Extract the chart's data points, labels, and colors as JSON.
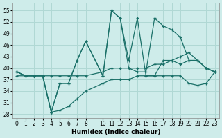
{
  "xlabel": "Humidex (Indice chaleur)",
  "background_color": "#ceecea",
  "grid_color": "#b0d8d4",
  "line_color": "#1a7068",
  "xlim": [
    -0.5,
    23.5
  ],
  "ylim": [
    27,
    57
  ],
  "yticks": [
    28,
    31,
    34,
    37,
    40,
    43,
    46,
    49,
    52,
    55
  ],
  "xticks": [
    0,
    1,
    2,
    3,
    4,
    5,
    6,
    7,
    8,
    10,
    11,
    12,
    13,
    14,
    15,
    16,
    17,
    18,
    19,
    20,
    21,
    22,
    23
  ],
  "series": [
    {
      "x": [
        0,
        1,
        2,
        3,
        4,
        5,
        6,
        7,
        8,
        10,
        11,
        12,
        13,
        14,
        15,
        16,
        17,
        18,
        19,
        20,
        21,
        22,
        23
      ],
      "y": [
        39,
        38,
        38,
        38,
        28.5,
        36,
        36,
        42,
        47,
        38,
        55,
        53,
        40,
        39,
        39,
        53,
        51,
        50,
        48,
        42,
        42,
        40,
        39
      ]
    },
    {
      "x": [
        0,
        1,
        2,
        3,
        4,
        5,
        6,
        7,
        8,
        10,
        11,
        12,
        13,
        14,
        15,
        16,
        17,
        18,
        19,
        20,
        21,
        22,
        23
      ],
      "y": [
        39,
        38,
        38,
        38,
        28.5,
        36,
        36,
        42,
        47,
        38,
        55,
        53,
        42,
        53,
        38,
        38,
        42,
        42,
        41,
        42,
        42,
        40,
        39
      ]
    },
    {
      "x": [
        0,
        1,
        2,
        3,
        4,
        5,
        6,
        7,
        8,
        10,
        11,
        12,
        13,
        14,
        15,
        16,
        17,
        18,
        19,
        20,
        21,
        22,
        23
      ],
      "y": [
        39,
        38,
        38,
        38,
        38,
        38,
        38,
        38,
        38,
        39,
        40,
        40,
        40,
        40,
        40,
        41,
        41,
        42,
        43,
        44,
        42,
        40,
        39
      ]
    },
    {
      "x": [
        0,
        2,
        3,
        4,
        5,
        6,
        7,
        8,
        10,
        11,
        12,
        13,
        14,
        15,
        16,
        17,
        18,
        19,
        20,
        21,
        22,
        23
      ],
      "y": [
        38,
        38,
        38,
        28.5,
        29,
        30,
        32,
        34,
        36,
        37,
        37,
        37,
        38,
        38,
        38,
        38,
        38,
        38,
        36,
        35.5,
        36,
        39
      ]
    }
  ]
}
